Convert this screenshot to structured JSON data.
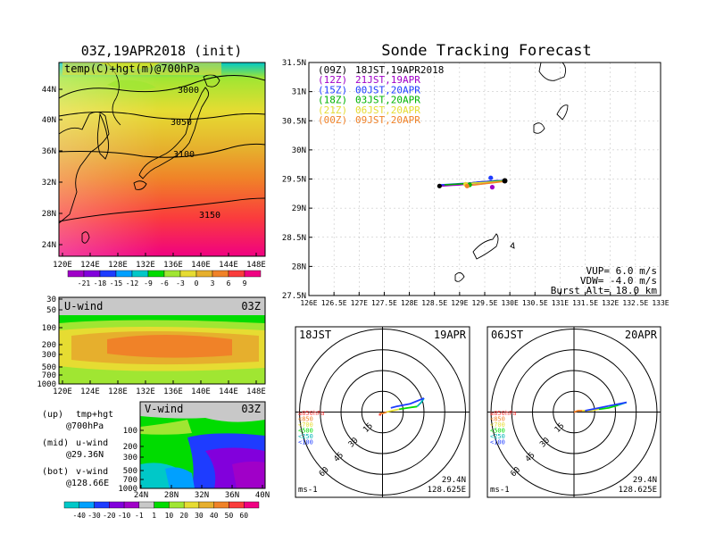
{
  "left_map": {
    "title": "03Z,19APR2018 (init)",
    "field_label": "temp(C)+hgt(m)@700hPa",
    "contour_labels": [
      "3000",
      "3050",
      "3100",
      "3150"
    ],
    "lat_ticks": [
      "44N",
      "40N",
      "36N",
      "32N",
      "28N",
      "24N"
    ],
    "lon_ticks": [
      "120E",
      "124E",
      "128E",
      "132E",
      "136E",
      "140E",
      "144E",
      "148E"
    ],
    "colorbar_labels": [
      "-21",
      "-18",
      "-15",
      "-12",
      "-9",
      "-6",
      "-3",
      "0",
      "3",
      "6",
      "9"
    ],
    "colorbar_colors": [
      "#a000c8",
      "#8200dc",
      "#1e3cff",
      "#00a0ff",
      "#00c8c8",
      "#00dc00",
      "#a0e632",
      "#e6dc32",
      "#e6af2d",
      "#f08228",
      "#fa3c3c",
      "#f00082"
    ]
  },
  "u_wind": {
    "label": "U-wind",
    "time": "03Z",
    "p_ticks": [
      "30",
      "50",
      "100",
      "200",
      "300",
      "500",
      "700",
      "1000"
    ],
    "lon_ticks": [
      "120E",
      "124E",
      "128E",
      "132E",
      "136E",
      "140E",
      "144E",
      "148E"
    ]
  },
  "v_wind": {
    "label": "V-wind",
    "time": "03Z",
    "p_ticks": [
      "100",
      "200",
      "300",
      "500",
      "700",
      "1000"
    ],
    "lat_ticks": [
      "24N",
      "28N",
      "32N",
      "36N",
      "40N"
    ],
    "colorbar_labels": [
      "-40",
      "-30",
      "-20",
      "-10",
      "-1",
      "1",
      "10",
      "20",
      "30",
      "40",
      "50",
      "60"
    ],
    "colorbar_colors": [
      "#00c8c8",
      "#00a0ff",
      "#1e3cff",
      "#8200dc",
      "#a000c8",
      "#c8c8c8",
      "#00dc00",
      "#a0e632",
      "#e6dc32",
      "#e6af2d",
      "#f08228",
      "#fa3c3c",
      "#f00082"
    ]
  },
  "notes": [
    {
      "tag": "(up)",
      "text": "tmp+hgt",
      "sub": "@700hPa"
    },
    {
      "tag": "(mid)",
      "text": "u-wind",
      "sub": "@29.36N"
    },
    {
      "tag": "(bot)",
      "text": "v-wind",
      "sub": "@128.66E"
    }
  ],
  "track_panel": {
    "title": "Sonde Tracking Forecast",
    "legend": [
      {
        "code": "(09Z)",
        "label": "18JST,19APR2018",
        "color": "#000000"
      },
      {
        "code": "(12Z)",
        "label": "21JST,19APR",
        "color": "#a000c8"
      },
      {
        "code": "(15Z)",
        "label": "00JST,20APR",
        "color": "#1e3cff"
      },
      {
        "code": "(18Z)",
        "label": "03JST,20APR",
        "color": "#00b400"
      },
      {
        "code": "(21Z)",
        "label": "06JST,20APR",
        "color": "#e6dc32"
      },
      {
        "code": "(00Z)",
        "label": "09JST,20APR",
        "color": "#f08228"
      }
    ],
    "params": [
      "VUP= 6.0 m/s",
      "VDW= -4.0 m/s",
      "Burst Alt= 18.0 km"
    ],
    "lat_ticks": [
      "31.5N",
      "31N",
      "30.5N",
      "30N",
      "29.5N",
      "29N",
      "28.5N",
      "28N",
      "27.5N"
    ],
    "lon_ticks": [
      "126E",
      "126.5E",
      "127E",
      "127.5E",
      "128E",
      "128.5E",
      "129E",
      "129.5E",
      "130E",
      "130.5E",
      "131E",
      "131.5E",
      "132E",
      "132.5E",
      "133E"
    ]
  },
  "polar_left": {
    "time_label": "18JST",
    "date_label": "19APR",
    "ring_labels": [
      "15",
      "30",
      "45",
      "60"
    ],
    "unit": "ms-1",
    "location": [
      "29.4N",
      "128.625E"
    ],
    "pressure_legend": [
      {
        "label": "≥850hPa",
        "color": "#fa3c3c"
      },
      {
        "label": "<850",
        "color": "#f08228"
      },
      {
        "label": "<700",
        "color": "#e6dc32"
      },
      {
        "label": "<500",
        "color": "#00dc00"
      },
      {
        "label": "<250",
        "color": "#00b4b4"
      },
      {
        "label": "<100",
        "color": "#1e3cff"
      }
    ]
  },
  "polar_right": {
    "time_label": "06JST",
    "date_label": "20APR",
    "ring_labels": [
      "15",
      "30",
      "45",
      "60"
    ],
    "unit": "ms-1",
    "location": [
      "29.4N",
      "128.625E"
    ],
    "pressure_legend": [
      {
        "label": "≥850hPa",
        "color": "#fa3c3c"
      },
      {
        "label": "<850",
        "color": "#f08228"
      },
      {
        "label": "<700",
        "color": "#e6dc32"
      },
      {
        "label": "<500",
        "color": "#00dc00"
      },
      {
        "label": "<250",
        "color": "#00b4b4"
      },
      {
        "label": "<100",
        "color": "#1e3cff"
      }
    ]
  },
  "chart_data": [
    {
      "type": "heatmap",
      "title": "03Z,19APR2018 (init)",
      "field": "temp(C)+hgt(m)@700hPa",
      "x_ticks": [
        "120E",
        "124E",
        "128E",
        "132E",
        "136E",
        "140E",
        "144E",
        "148E"
      ],
      "y_ticks": [
        "24N",
        "28N",
        "32N",
        "36N",
        "40N",
        "44N"
      ],
      "contours": [
        3000,
        3050,
        3100,
        3150
      ]
    },
    {
      "type": "heatmap",
      "title": "U-wind",
      "x_ticks": [
        "120E",
        "124E",
        "128E",
        "132E",
        "136E",
        "140E",
        "144E",
        "148E"
      ],
      "y_ticks": [
        "30",
        "50",
        "100",
        "200",
        "300",
        "500",
        "700",
        "1000"
      ]
    },
    {
      "type": "heatmap",
      "title": "V-wind",
      "x_ticks": [
        "24N",
        "28N",
        "32N",
        "36N",
        "40N"
      ],
      "y_ticks": [
        "100",
        "200",
        "300",
        "500",
        "700",
        "1000"
      ]
    },
    {
      "type": "line",
      "title": "Sonde Tracking Forecast",
      "xlim": [
        126,
        133
      ],
      "ylim": [
        27.5,
        31.5
      ],
      "start": {
        "lon": 129.9,
        "lat": 29.47
      },
      "series": [
        {
          "name": "18JST,19APR2018",
          "color": "#000000",
          "x": [
            129.9,
            129.75,
            129.6,
            129.4,
            129.2,
            129.0,
            128.85,
            128.7,
            128.6
          ],
          "y": [
            29.47,
            29.47,
            29.46,
            29.45,
            29.43,
            29.41,
            29.4,
            29.39,
            29.38
          ]
        },
        {
          "name": "21JST,19APR",
          "color": "#a000c8",
          "x": [
            129.9,
            129.75,
            129.6,
            129.4,
            129.2,
            129.0,
            128.8,
            128.65
          ],
          "y": [
            29.47,
            29.46,
            29.45,
            29.43,
            29.42,
            29.4,
            29.39,
            29.38
          ]
        },
        {
          "name": "00JST,20APR",
          "color": "#1e3cff",
          "x": [
            129.9,
            129.75,
            129.6,
            129.4,
            129.2,
            129.0,
            128.8,
            128.62
          ],
          "y": [
            29.47,
            29.47,
            29.46,
            29.45,
            29.43,
            29.42,
            29.41,
            29.4
          ]
        },
        {
          "name": "03JST,20APR",
          "color": "#00b400",
          "x": [
            129.9,
            129.7,
            129.5,
            129.3,
            129.1,
            128.9,
            128.7
          ],
          "y": [
            29.47,
            29.46,
            29.44,
            29.43,
            29.42,
            29.41,
            29.4
          ]
        },
        {
          "name": "06JST,20APR",
          "color": "#e6dc32",
          "x": [
            129.9,
            129.7,
            129.5,
            129.3,
            129.1
          ],
          "y": [
            29.46,
            29.45,
            29.44,
            29.43,
            29.42
          ]
        },
        {
          "name": "09JST,20APR",
          "color": "#f08228",
          "x": [
            129.9,
            129.7,
            129.5,
            129.3,
            129.1
          ],
          "y": [
            29.46,
            29.44,
            29.42,
            29.4,
            29.39
          ]
        }
      ],
      "landing_points": [
        {
          "color": "#000000",
          "x": 128.6,
          "y": 29.38
        },
        {
          "color": "#a000c8",
          "x": 129.65,
          "y": 29.36
        },
        {
          "color": "#1e3cff",
          "x": 129.62,
          "y": 29.52
        },
        {
          "color": "#00b400",
          "x": 129.2,
          "y": 29.4
        },
        {
          "color": "#e6dc32",
          "x": 129.12,
          "y": 29.41
        },
        {
          "color": "#f08228",
          "x": 129.15,
          "y": 29.38
        }
      ]
    },
    {
      "type": "line",
      "title": "18JST 19APR hodograph",
      "rlim": [
        0,
        75
      ],
      "rings": [
        15,
        30,
        45,
        60
      ],
      "series": [
        {
          "name": "≥850hPa",
          "color": "#fa3c3c",
          "u": [
            -1,
            -2,
            -2
          ],
          "v": [
            -2,
            -2,
            -1
          ]
        },
        {
          "name": "<850",
          "color": "#f08228",
          "u": [
            -2,
            0,
            3
          ],
          "v": [
            -1,
            -1,
            0
          ]
        },
        {
          "name": "<700",
          "color": "#e6dc32",
          "u": [
            3,
            7,
            12
          ],
          "v": [
            0,
            1,
            2
          ]
        },
        {
          "name": "<500",
          "color": "#00dc00",
          "u": [
            12,
            18,
            25
          ],
          "v": [
            2,
            3,
            4
          ]
        },
        {
          "name": "<250",
          "color": "#00b4b4",
          "u": [
            25,
            28,
            30
          ],
          "v": [
            4,
            7,
            10
          ]
        },
        {
          "name": "<100",
          "color": "#1e3cff",
          "u": [
            30,
            20,
            10,
            6
          ],
          "v": [
            10,
            6,
            4,
            3
          ]
        }
      ]
    },
    {
      "type": "line",
      "title": "06JST 20APR hodograph",
      "rlim": [
        0,
        75
      ],
      "rings": [
        15,
        30,
        45,
        60
      ],
      "series": [
        {
          "name": "≥850hPa",
          "color": "#fa3c3c",
          "u": [
            1,
            0,
            0
          ],
          "v": [
            0,
            0,
            0
          ]
        },
        {
          "name": "<850",
          "color": "#f08228",
          "u": [
            0,
            3,
            6
          ],
          "v": [
            0,
            1,
            1
          ]
        },
        {
          "name": "<700",
          "color": "#e6dc32",
          "u": [
            6,
            12,
            18
          ],
          "v": [
            1,
            1,
            2
          ]
        },
        {
          "name": "<500",
          "color": "#00dc00",
          "u": [
            18,
            25,
            32
          ],
          "v": [
            2,
            3,
            5
          ]
        },
        {
          "name": "<250",
          "color": "#00b4b4",
          "u": [
            32,
            35,
            38
          ],
          "v": [
            5,
            6,
            7
          ]
        },
        {
          "name": "<100",
          "color": "#1e3cff",
          "u": [
            38,
            28,
            18,
            8
          ],
          "v": [
            7,
            5,
            3,
            1
          ]
        }
      ]
    }
  ]
}
